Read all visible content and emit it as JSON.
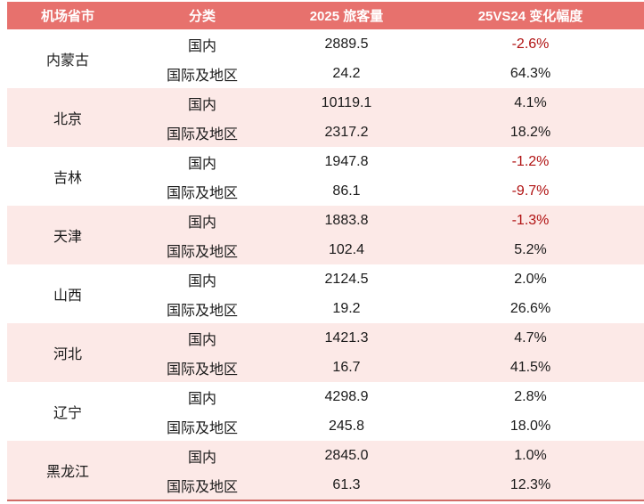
{
  "table": {
    "headers": [
      "机场省市",
      "分类",
      "2025 旅客量",
      "25VS24 变化幅度"
    ],
    "groups": [
      {
        "province": "内蒙古",
        "rows": [
          {
            "category": "国内",
            "volume": "2889.5",
            "change": "-2.6%"
          },
          {
            "category": "国际及地区",
            "volume": "24.2",
            "change": "64.3%"
          }
        ]
      },
      {
        "province": "北京",
        "rows": [
          {
            "category": "国内",
            "volume": "10119.1",
            "change": "4.1%"
          },
          {
            "category": "国际及地区",
            "volume": "2317.2",
            "change": "18.2%"
          }
        ]
      },
      {
        "province": "吉林",
        "rows": [
          {
            "category": "国内",
            "volume": "1947.8",
            "change": "-1.2%"
          },
          {
            "category": "国际及地区",
            "volume": "86.1",
            "change": "-9.7%"
          }
        ]
      },
      {
        "province": "天津",
        "rows": [
          {
            "category": "国内",
            "volume": "1883.8",
            "change": "-1.3%"
          },
          {
            "category": "国际及地区",
            "volume": "102.4",
            "change": "5.2%"
          }
        ]
      },
      {
        "province": "山西",
        "rows": [
          {
            "category": "国内",
            "volume": "2124.5",
            "change": "2.0%"
          },
          {
            "category": "国际及地区",
            "volume": "19.2",
            "change": "26.6%"
          }
        ]
      },
      {
        "province": "河北",
        "rows": [
          {
            "category": "国内",
            "volume": "1421.3",
            "change": "4.7%"
          },
          {
            "category": "国际及地区",
            "volume": "16.7",
            "change": "41.5%"
          }
        ]
      },
      {
        "province": "辽宁",
        "rows": [
          {
            "category": "国内",
            "volume": "4298.9",
            "change": "2.8%"
          },
          {
            "category": "国际及地区",
            "volume": "245.8",
            "change": "18.0%"
          }
        ]
      },
      {
        "province": "黑龙江",
        "rows": [
          {
            "category": "国内",
            "volume": "2845.0",
            "change": "1.0%"
          },
          {
            "category": "国际及地区",
            "volume": "61.3",
            "change": "12.3%"
          }
        ]
      }
    ]
  },
  "colors": {
    "header_bg": "#E7716D",
    "row_alt_bg": "#FCE9E7",
    "negative_text": "#B01111",
    "body_text": "#1A1A1A",
    "bottom_rule": "#D06B67"
  }
}
